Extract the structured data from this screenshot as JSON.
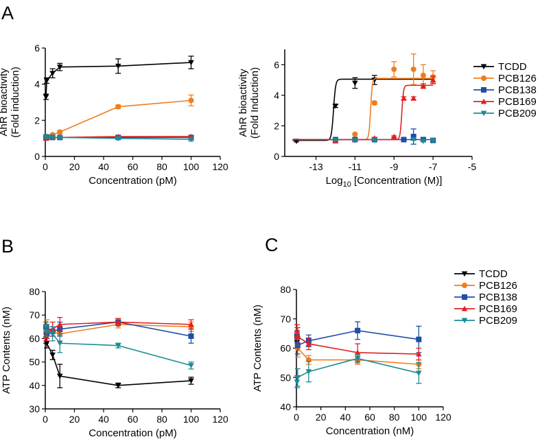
{
  "figure": {
    "labels": [
      "A",
      "B",
      "C"
    ]
  },
  "chart_data": [
    {
      "id": "A1",
      "panel": "A",
      "type": "line",
      "xscale": "linear",
      "xlabel": "Concentration (pM)",
      "ylabel": [
        "AhR bioactivity",
        "(Fold induction)"
      ],
      "xlim": [
        0,
        120
      ],
      "ylim": [
        0,
        6
      ],
      "xticks": [
        0,
        20,
        40,
        60,
        80,
        100,
        120
      ],
      "xtick_labels": [
        "0",
        "20",
        "40",
        "60",
        "80",
        "100",
        "120"
      ],
      "yticks": [
        0,
        2,
        4,
        6
      ],
      "ytick_labels": [
        "0",
        "2",
        "4",
        "6"
      ],
      "series": [
        {
          "name": "TCDD",
          "color": "#000000",
          "marker": "tri-down",
          "x": [
            0.5,
            1,
            5,
            10,
            50,
            100
          ],
          "y": [
            3.3,
            4.2,
            4.6,
            4.95,
            5.0,
            5.2
          ],
          "err": [
            0.15,
            0.15,
            0.25,
            0.2,
            0.4,
            0.35
          ]
        },
        {
          "name": "PCB126",
          "color": "#f07d1c",
          "marker": "circle",
          "x": [
            0.5,
            1,
            5,
            10,
            50,
            100
          ],
          "y": [
            1.05,
            1.1,
            1.2,
            1.35,
            2.75,
            3.1
          ],
          "err": [
            0.05,
            0.05,
            0.05,
            0.08,
            0.1,
            0.3
          ]
        },
        {
          "name": "PCB138",
          "color": "#1f4ea8",
          "marker": "square",
          "x": [
            0.5,
            1,
            5,
            10,
            50,
            100
          ],
          "y": [
            1.05,
            1.05,
            1.05,
            1.05,
            1.05,
            1.05
          ],
          "err": [
            0.05,
            0.05,
            0.05,
            0.05,
            0.05,
            0.05
          ]
        },
        {
          "name": "PCB169",
          "color": "#e02020",
          "marker": "triangle",
          "x": [
            0.5,
            1,
            5,
            10,
            50,
            100
          ],
          "y": [
            1.0,
            1.05,
            1.05,
            1.05,
            1.1,
            1.1
          ],
          "err": [
            0.05,
            0.05,
            0.05,
            0.05,
            0.05,
            0.05
          ]
        },
        {
          "name": "PCB209",
          "color": "#1a8b96",
          "marker": "tri-down",
          "x": [
            0.5,
            1,
            5,
            10,
            50,
            100
          ],
          "y": [
            1.1,
            1.1,
            1.05,
            1.05,
            1.0,
            0.95
          ],
          "err": [
            0.1,
            0.1,
            0.05,
            0.05,
            0.05,
            0.1
          ]
        }
      ]
    },
    {
      "id": "A2",
      "panel": "A",
      "type": "line",
      "xscale": "log10",
      "xlabel_parts": [
        "Log",
        "10",
        " [Concentration (M)]"
      ],
      "ylabel": [
        "AhR bioactivity",
        "(Fold Induction)"
      ],
      "xlim": [
        -14.6,
        -5
      ],
      "ylim": [
        0,
        7
      ],
      "xticks": [
        -13,
        -11,
        -9,
        -7,
        -5
      ],
      "xtick_labels": [
        "-13",
        "-11",
        "-9",
        "-7",
        "-5"
      ],
      "yticks": [
        0,
        2,
        4,
        6
      ],
      "ytick_labels": [
        "0",
        "2",
        "4",
        "6"
      ],
      "legend": {
        "position": "right",
        "entries": [
          "TCDD",
          "PCB126",
          "PCB138",
          "PCB169",
          "PCB209"
        ]
      },
      "series": [
        {
          "name": "TCDD",
          "color": "#000000",
          "marker": "tri-down",
          "x": [
            -14,
            -12,
            -11,
            -10
          ],
          "y": [
            1.0,
            3.3,
            4.8,
            5.0
          ],
          "err": [
            0.05,
            0.1,
            0.35,
            0.3
          ],
          "fit": {
            "bottom": 1.05,
            "top": 5.05,
            "logec50": -12.1,
            "hill": 8
          }
        },
        {
          "name": "PCB126",
          "color": "#f07d1c",
          "marker": "circle",
          "x": [
            -11,
            -10,
            -9,
            -8,
            -7.5,
            -7
          ],
          "y": [
            1.45,
            3.5,
            5.7,
            5.7,
            5.3,
            5.2
          ],
          "err": [
            0.05,
            0.1,
            0.5,
            1.0,
            0.7,
            0.4
          ],
          "fit": {
            "bottom": 1.1,
            "top": 5.1,
            "logec50": -10.2,
            "hill": 10
          }
        },
        {
          "name": "PCB138",
          "color": "#1f4ea8",
          "marker": "square",
          "x": [
            -12,
            -11,
            -10,
            -8.5,
            -8,
            -7.5,
            -7
          ],
          "y": [
            1.1,
            1.1,
            1.1,
            1.1,
            1.3,
            1.1,
            1.05
          ],
          "err": [
            0.05,
            0.05,
            0.05,
            0.05,
            0.5,
            0.1,
            0.05
          ],
          "fit": {
            "bottom": 1.1,
            "top": 1.1,
            "logec50": -10,
            "hill": 1
          }
        },
        {
          "name": "PCB169",
          "color": "#e02020",
          "marker": "triangle",
          "x": [
            -12,
            -11,
            -10,
            -9,
            -8.5,
            -8,
            -7.5,
            -7
          ],
          "y": [
            1.0,
            1.1,
            1.2,
            1.3,
            3.8,
            3.8,
            4.6,
            5.0
          ],
          "err": [
            0.05,
            0.05,
            0.05,
            0.05,
            0.1,
            0.1,
            0.15,
            0.25
          ],
          "fit": {
            "bottom": 1.1,
            "top": 4.65,
            "logec50": -8.6,
            "hill": 10
          }
        },
        {
          "name": "PCB209",
          "color": "#1a8b96",
          "marker": "tri-down",
          "x": [
            -12,
            -11,
            -10,
            -8,
            -7.5,
            -7
          ],
          "y": [
            1.05,
            1.05,
            1.05,
            1.1,
            1.0,
            1.05
          ],
          "err": [
            0.05,
            0.05,
            0.05,
            0.05,
            0.05,
            0.05
          ],
          "fit": null
        }
      ]
    },
    {
      "id": "B",
      "panel": "B",
      "type": "line",
      "xscale": "linear",
      "xlabel": "Concentration (pM)",
      "ylabel": [
        "ATP Contents (nM)"
      ],
      "xlim": [
        0,
        120
      ],
      "ylim": [
        30,
        80
      ],
      "xticks": [
        0,
        20,
        40,
        60,
        80,
        100,
        120
      ],
      "xtick_labels": [
        "0",
        "20",
        "40",
        "60",
        "80",
        "100",
        "120"
      ],
      "yticks": [
        30,
        40,
        50,
        60,
        70,
        80
      ],
      "ytick_labels": [
        "30",
        "40",
        "50",
        "60",
        "70",
        "80"
      ],
      "series": [
        {
          "name": "TCDD",
          "color": "#000000",
          "marker": "tri-down",
          "x": [
            0.5,
            1,
            5,
            10,
            50,
            100
          ],
          "y": [
            60,
            58,
            53,
            44,
            40,
            42
          ],
          "err": [
            2,
            2,
            2,
            5,
            1,
            1.5
          ]
        },
        {
          "name": "PCB126",
          "color": "#f07d1c",
          "marker": "circle",
          "x": [
            0.5,
            1,
            5,
            10,
            50,
            100
          ],
          "y": [
            63,
            65,
            63,
            62,
            66,
            65
          ],
          "err": [
            2,
            3,
            2,
            3,
            1.5,
            2
          ]
        },
        {
          "name": "PCB138",
          "color": "#1f4ea8",
          "marker": "square",
          "x": [
            0.5,
            1,
            5,
            10,
            50,
            100
          ],
          "y": [
            65,
            62,
            63,
            64,
            67,
            61
          ],
          "err": [
            2,
            2,
            2,
            3,
            1.5,
            3
          ]
        },
        {
          "name": "PCB169",
          "color": "#e02020",
          "marker": "triangle",
          "x": [
            0.5,
            1,
            5,
            10,
            50,
            100
          ],
          "y": [
            61,
            63,
            64,
            66,
            67,
            66
          ],
          "err": [
            2,
            3,
            3,
            3,
            1.5,
            2
          ]
        },
        {
          "name": "PCB209",
          "color": "#1a8b96",
          "marker": "tri-down",
          "x": [
            0.5,
            1,
            5,
            10,
            50,
            100
          ],
          "y": [
            65,
            63,
            62,
            58,
            57,
            48.5
          ],
          "err": [
            2,
            2,
            3,
            4,
            1,
            1.5
          ]
        }
      ]
    },
    {
      "id": "C",
      "panel": "C",
      "type": "line",
      "xscale": "linear",
      "xlabel": "Concentration (nM)",
      "ylabel": [
        "ATP Contents (nM)"
      ],
      "xlim": [
        0,
        120
      ],
      "ylim": [
        40,
        80
      ],
      "xticks": [
        0,
        20,
        40,
        60,
        80,
        100,
        120
      ],
      "xtick_labels": [
        "0",
        "20",
        "40",
        "60",
        "80",
        "100",
        "120"
      ],
      "yticks": [
        40,
        50,
        60,
        70,
        80
      ],
      "ytick_labels": [
        "40",
        "50",
        "60",
        "70",
        "80"
      ],
      "legend": {
        "position": "top-right",
        "entries": [
          "TCDD",
          "PCB126",
          "PCB138",
          "PCB169",
          "PCB209"
        ]
      },
      "series": [
        {
          "name": "TCDD",
          "color": "#000000",
          "marker": "tri-down",
          "x": [
            0.5
          ],
          "y": [
            62
          ],
          "err": [
            2
          ]
        },
        {
          "name": "PCB126",
          "color": "#f07d1c",
          "marker": "circle",
          "x": [
            0.5,
            1,
            10,
            50,
            100
          ],
          "y": [
            65,
            60,
            56,
            56,
            54.5
          ],
          "err": [
            2,
            3,
            1.5,
            1.5,
            1.5
          ]
        },
        {
          "name": "PCB138",
          "color": "#1f4ea8",
          "marker": "square",
          "x": [
            0.5,
            1,
            10,
            50,
            100
          ],
          "y": [
            64,
            61,
            62.5,
            66,
            63
          ],
          "err": [
            2,
            3,
            2,
            3,
            4.5
          ]
        },
        {
          "name": "PCB169",
          "color": "#e02020",
          "marker": "triangle",
          "x": [
            0.5,
            1,
            10,
            50,
            100
          ],
          "y": [
            66,
            64,
            61.5,
            58.5,
            58
          ],
          "err": [
            2,
            3,
            2,
            3,
            2
          ]
        },
        {
          "name": "PCB209",
          "color": "#1a8b96",
          "marker": "tri-down",
          "x": [
            0.5,
            1,
            10,
            50,
            100
          ],
          "y": [
            48.5,
            50,
            52,
            56.5,
            51.5
          ],
          "err": [
            2,
            3,
            3.5,
            1.5,
            3.5
          ]
        }
      ]
    }
  ]
}
